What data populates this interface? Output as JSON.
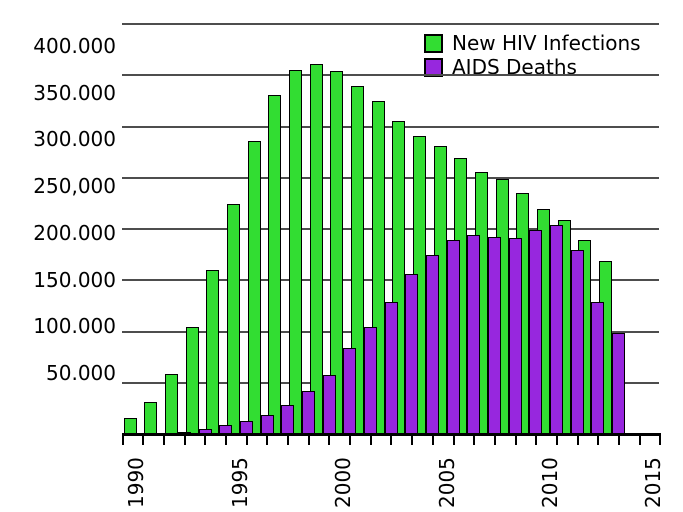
{
  "chart_data": {
    "type": "bar",
    "title": "",
    "categories": [
      1990,
      1991,
      1992,
      1993,
      1994,
      1995,
      1996,
      1997,
      1998,
      1999,
      2000,
      2001,
      2002,
      2003,
      2004,
      2005,
      2006,
      2007,
      2008,
      2009,
      2010,
      2011,
      2012,
      2013
    ],
    "series": [
      {
        "name": "New HIV Infections",
        "color": "#32DD32",
        "values": [
          16000,
          31000,
          59000,
          104000,
          160000,
          224000,
          286000,
          331000,
          355000,
          361000,
          354000,
          340000,
          325000,
          305000,
          291000,
          281000,
          269000,
          256000,
          249000,
          235000,
          220000,
          209000,
          189000,
          169000
        ]
      },
      {
        "name": "AIDS Deaths",
        "color": "#9727DE",
        "values": [
          0,
          0,
          2000,
          5000,
          9000,
          13000,
          19000,
          28000,
          42000,
          58000,
          84000,
          104000,
          129000,
          156000,
          175000,
          189000,
          194000,
          192000,
          191000,
          199000,
          204000,
          180000,
          129000,
          99000
        ]
      }
    ],
    "y_axis": {
      "min": 0,
      "max": 400000,
      "tick_values": [
        50000,
        100000,
        150000,
        200000,
        250000,
        300000,
        350000,
        400000
      ],
      "tick_labels": [
        "50.000",
        "100.000",
        "150.000",
        "200.000",
        "250,000",
        "300.000",
        "350.000",
        "400.000"
      ]
    },
    "x_axis": {
      "range_start": 1989,
      "range_end": 2015,
      "minor_tick_step": 1,
      "tick_values": [
        1990,
        1995,
        2000,
        2005,
        2010,
        2015
      ],
      "tick_labels": [
        "1990",
        "1995",
        "2000",
        "2005",
        "2010",
        "2015"
      ]
    },
    "grid": true,
    "grid_color": "#4d4d4d",
    "axis_color": "#000000",
    "legend_position": "top-right"
  }
}
